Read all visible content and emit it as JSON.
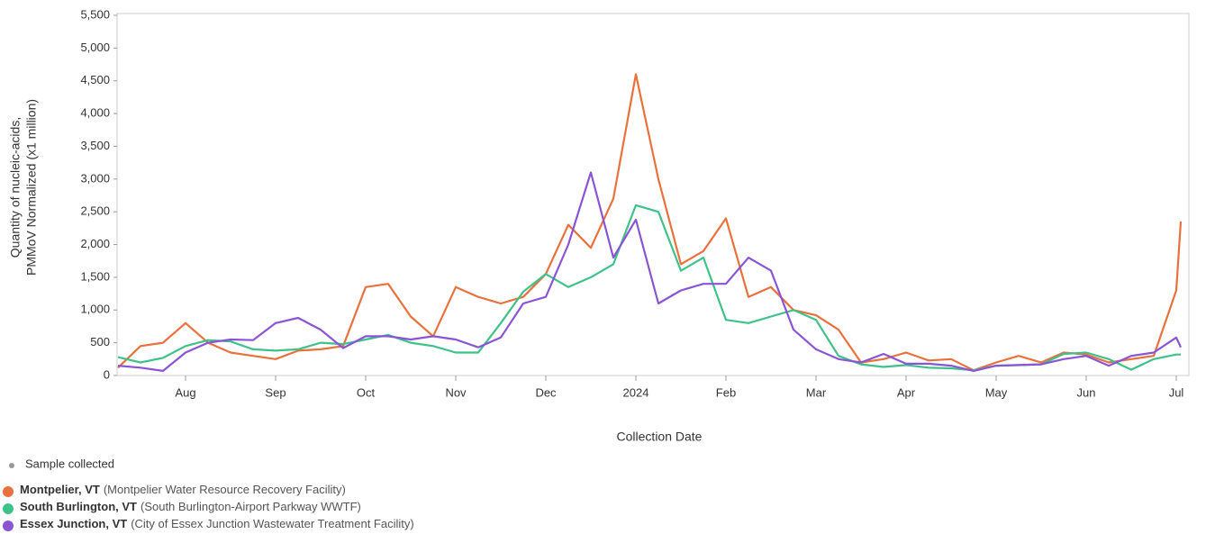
{
  "chart_data": {
    "type": "line",
    "y_label": [
      "Quantity of nucleic-acids,",
      "PMMoV Normalized (x1 million)"
    ],
    "x_label": "Collection Date",
    "sample_legend": "Sample collected",
    "x": [
      0.25,
      0.5,
      0.75,
      1.0,
      1.25,
      1.5,
      1.75,
      2.0,
      2.25,
      2.5,
      2.75,
      3.0,
      3.25,
      3.5,
      3.75,
      4.0,
      4.25,
      4.5,
      4.75,
      5.0,
      5.25,
      5.5,
      5.75,
      6.0,
      6.25,
      6.5,
      6.75,
      7.0,
      7.25,
      7.5,
      7.75,
      8.0,
      8.25,
      8.5,
      8.75,
      9.0,
      9.25,
      9.5,
      9.75,
      10.0,
      10.25,
      10.5,
      10.75,
      11.0,
      11.25,
      11.5,
      11.75,
      12.0,
      12.05
    ],
    "xlim": [
      0.24,
      12.14
    ],
    "xticks": [
      {
        "value": 1,
        "label": "Aug"
      },
      {
        "value": 2,
        "label": "Sep"
      },
      {
        "value": 3,
        "label": "Oct"
      },
      {
        "value": 4,
        "label": "Nov"
      },
      {
        "value": 5,
        "label": "Dec"
      },
      {
        "value": 6,
        "label": "2024"
      },
      {
        "value": 7,
        "label": "Feb"
      },
      {
        "value": 8,
        "label": "Mar"
      },
      {
        "value": 9,
        "label": "Apr"
      },
      {
        "value": 10,
        "label": "May"
      },
      {
        "value": 11,
        "label": "Jun"
      },
      {
        "value": 12,
        "label": "Jul"
      }
    ],
    "ylim": [
      0,
      5500
    ],
    "yticks": [
      0,
      500,
      {
        "value": 1000,
        "label": "1,000"
      },
      {
        "value": 1500,
        "label": "1,500"
      },
      {
        "value": 2000,
        "label": "2,000"
      },
      {
        "value": 2500,
        "label": "2,500"
      },
      {
        "value": 3000,
        "label": "3,000"
      },
      {
        "value": 3500,
        "label": "3,500"
      },
      {
        "value": 4000,
        "label": "4,000"
      },
      {
        "value": 4500,
        "label": "4,500"
      },
      {
        "value": 5000,
        "label": "5,000"
      },
      {
        "value": 5500,
        "label": "5,500"
      }
    ],
    "series": [
      {
        "name": "Montpelier, VT",
        "description": "(Montpelier Water Resource Recovery Facility)",
        "color": "#e8713c",
        "values": [
          120,
          450,
          500,
          800,
          500,
          350,
          300,
          250,
          380,
          400,
          450,
          1350,
          1400,
          900,
          600,
          1350,
          1200,
          1100,
          1200,
          1550,
          2300,
          1950,
          2700,
          4600,
          3000,
          1700,
          1900,
          2400,
          1200,
          1350,
          1000,
          920,
          700,
          200,
          250,
          350,
          230,
          250,
          80,
          200,
          300,
          200,
          350,
          320,
          200,
          250,
          300,
          1300,
          2350
        ]
      },
      {
        "name": "South Burlington, VT",
        "description": "(South Burlington-Airport Parkway WWTF)",
        "color": "#3fc28a",
        "values": [
          280,
          200,
          270,
          450,
          540,
          520,
          400,
          380,
          400,
          500,
          480,
          550,
          620,
          500,
          450,
          350,
          350,
          800,
          1280,
          1550,
          1350,
          1500,
          1700,
          2600,
          2500,
          1600,
          1800,
          850,
          800,
          900,
          1000,
          850,
          300,
          170,
          130,
          160,
          120,
          110,
          80,
          150,
          160,
          170,
          330,
          350,
          250,
          90,
          250,
          320,
          320
        ]
      },
      {
        "name": "Essex Junction, VT",
        "description": "(City of Essex Junction Wastewater Treatment Facility)",
        "color": "#8a55d4",
        "values": [
          150,
          120,
          70,
          350,
          500,
          550,
          540,
          800,
          880,
          700,
          420,
          600,
          600,
          550,
          600,
          550,
          430,
          580,
          1100,
          1200,
          2000,
          3100,
          1800,
          2380,
          1100,
          1300,
          1400,
          1400,
          1800,
          1600,
          700,
          400,
          250,
          200,
          330,
          180,
          180,
          150,
          70,
          150,
          160,
          170,
          250,
          300,
          150,
          300,
          350,
          580,
          430
        ]
      }
    ]
  }
}
